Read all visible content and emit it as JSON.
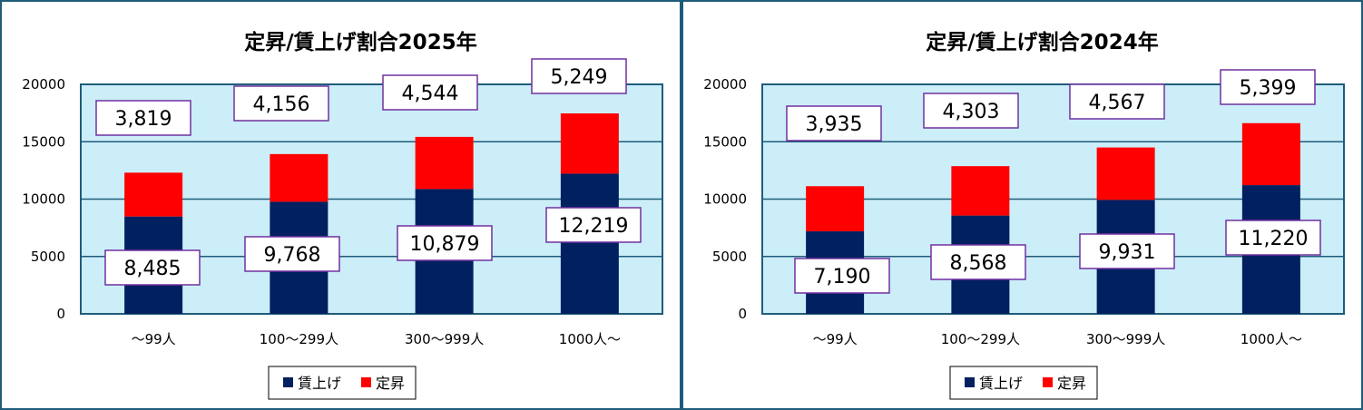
{
  "colors": {
    "wage_increase": "#002060",
    "regular_raise": "#ff0000",
    "plot_bg": "#cceef9",
    "grid": "#1f5c7a",
    "label_border": "#7030a0"
  },
  "legend": {
    "wage_increase": "賃上げ",
    "regular_raise": "定昇"
  },
  "chart_data": [
    {
      "type": "bar",
      "stacked": true,
      "title": "定昇/賃上げ割合2025年",
      "categories": [
        "～99人",
        "100～299人",
        "300～999人",
        "1000人～"
      ],
      "y_ticks": [
        "20000",
        "15000",
        "10000",
        "5000",
        "0"
      ],
      "ylim": [
        0,
        20000
      ],
      "series": [
        {
          "name": "賃上げ",
          "values": [
            8485,
            9768,
            10879,
            12219
          ],
          "labels": [
            "8,485",
            "9,768",
            "10,879",
            "12,219"
          ]
        },
        {
          "name": "定昇",
          "values": [
            3819,
            4156,
            4544,
            5249
          ],
          "labels": [
            "3,819",
            "4,156",
            "4,544",
            "5,249"
          ]
        }
      ],
      "grid": true,
      "legend_position": "bottom"
    },
    {
      "type": "bar",
      "stacked": true,
      "title": "定昇/賃上げ割合2024年",
      "categories": [
        "～99人",
        "100～299人",
        "300～999人",
        "1000人～"
      ],
      "y_ticks": [
        "20000",
        "15000",
        "10000",
        "5000",
        "0"
      ],
      "ylim": [
        0,
        20000
      ],
      "series": [
        {
          "name": "賃上げ",
          "values": [
            7190,
            8568,
            9931,
            11220
          ],
          "labels": [
            "7,190",
            "8,568",
            "9,931",
            "11,220"
          ]
        },
        {
          "name": "定昇",
          "values": [
            3935,
            4303,
            4567,
            5399
          ],
          "labels": [
            "3,935",
            "4,303",
            "4,567",
            "5,399"
          ]
        }
      ],
      "grid": true,
      "legend_position": "bottom"
    }
  ]
}
